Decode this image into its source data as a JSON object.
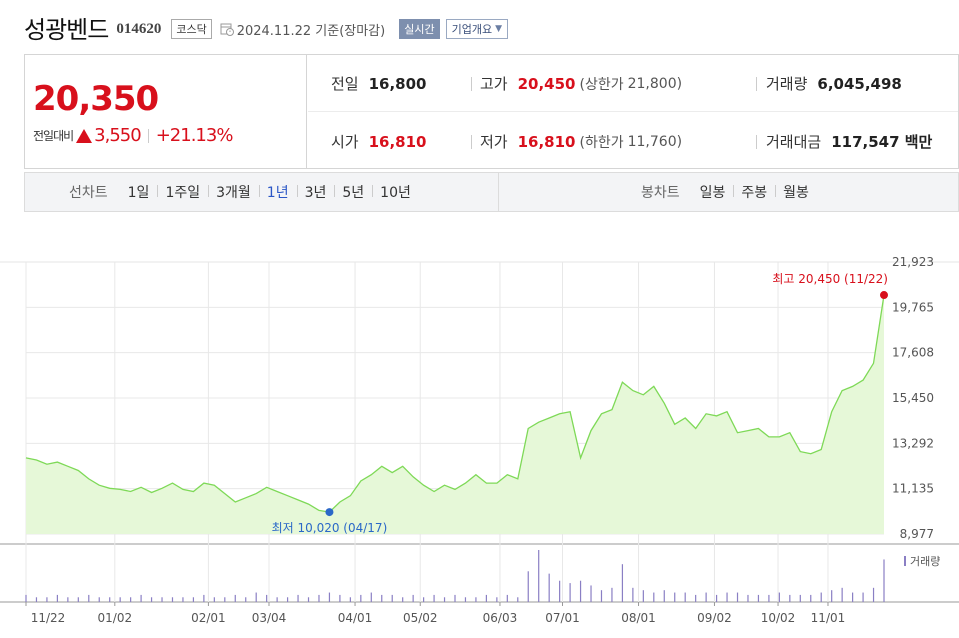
{
  "header": {
    "name": "성광벤드",
    "code": "014620",
    "market": "코스닥",
    "date": "2024.11.22 기준(장마감)",
    "live": "실시간",
    "company_info": "기업개요"
  },
  "quote": {
    "price": "20,350",
    "change_label": "전일대비",
    "change": "3,550",
    "change_pct": "+21.13%",
    "prev_label": "전일",
    "prev": "16,800",
    "open_label": "시가",
    "open": "16,810",
    "high_label": "고가",
    "high": "20,450",
    "upper_limit_label": "(상한가",
    "upper_limit": "21,800)",
    "low_label": "저가",
    "low": "16,810",
    "lower_limit_label": "(하한가",
    "lower_limit": "11,760)",
    "volume_label": "거래량",
    "volume": "6,045,498",
    "amount_label": "거래대금",
    "amount": "117,547 백만"
  },
  "periods": {
    "line_title": "선차트",
    "line_items": [
      "1일",
      "1주일",
      "3개월",
      "1년",
      "3년",
      "5년",
      "10년"
    ],
    "selected": "1년",
    "candle_title": "봉차트",
    "candle_items": [
      "일봉",
      "주봉",
      "월봉"
    ]
  },
  "colors": {
    "up": "#d8101c",
    "down": "#2a68c8",
    "line": "#7ed957",
    "fill": "#e6f8d8",
    "volume": "#8a7fc4"
  },
  "chart_data": {
    "type": "area",
    "y_ticks": [
      "21,923",
      "19,765",
      "17,608",
      "15,450",
      "13,292",
      "11,135",
      "8,977"
    ],
    "ylim": [
      8977,
      21923
    ],
    "x_ticks": [
      "11/22",
      "01/02",
      "02/01",
      "03/04",
      "04/01",
      "05/02",
      "06/03",
      "07/01",
      "08/01",
      "09/02",
      "10/02",
      "11/01"
    ],
    "high_annotation": "최고 20,450 (11/22)",
    "low_annotation": "최저 10,020 (04/17)",
    "volume_legend": "거래량",
    "series": [
      {
        "values": [
          12600,
          12500,
          12300,
          12400,
          12200,
          12000,
          11600,
          11300,
          11150,
          11100,
          11000,
          11200,
          10950,
          11150,
          11400,
          11100,
          11000,
          11400,
          11300,
          10900,
          10500,
          10700,
          10900,
          11200,
          11000,
          10800,
          10600,
          10400,
          10100,
          10020,
          10500,
          10800,
          11500,
          11800,
          12200,
          11900,
          12200,
          11700,
          11300,
          11000,
          11300,
          11100,
          11400,
          11800,
          11400,
          11400,
          11800,
          11600,
          14000,
          14300,
          14500,
          14700,
          14800,
          12600,
          13900,
          14700,
          14900,
          16200,
          15800,
          15600,
          16000,
          15200,
          14200,
          14500,
          14000,
          14700,
          14600,
          14800,
          13800,
          13900,
          14000,
          13600,
          13600,
          13800,
          12900,
          12800,
          13000,
          14800,
          15800,
          16000,
          16300,
          17100,
          20350
        ]
      },
      {
        "values": [
          3,
          2,
          2,
          3,
          2,
          2,
          3,
          2,
          2,
          2,
          2,
          3,
          2,
          2,
          2,
          2,
          2,
          3,
          2,
          2,
          3,
          2,
          4,
          3,
          2,
          2,
          3,
          2,
          3,
          4,
          3,
          2,
          3,
          4,
          3,
          3,
          2,
          3,
          2,
          3,
          2,
          3,
          2,
          2,
          3,
          2,
          3,
          2,
          13,
          22,
          12,
          9,
          8,
          9,
          7,
          5,
          6,
          16,
          6,
          5,
          4,
          5,
          4,
          4,
          3,
          4,
          3,
          4,
          4,
          3,
          3,
          3,
          4,
          3,
          3,
          3,
          4,
          5,
          6,
          4,
          4,
          6,
          18
        ]
      }
    ]
  }
}
